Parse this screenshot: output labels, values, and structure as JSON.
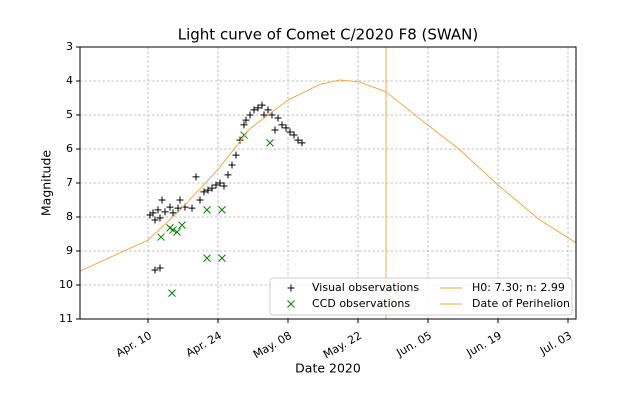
{
  "chart_data": {
    "type": "scatter",
    "title": "Light curve of Comet C/2020 F8 (SWAN)",
    "x_label": "Date 2020",
    "y_label": "Magnitude",
    "xlim": [
      87.4,
      186.6
    ],
    "xticks": [
      {
        "value": 101,
        "label": "Apr. 10"
      },
      {
        "value": 115,
        "label": "Apr. 24"
      },
      {
        "value": 129,
        "label": "May. 08"
      },
      {
        "value": 143,
        "label": "May. 22"
      },
      {
        "value": 157,
        "label": "Jun. 05"
      },
      {
        "value": 171,
        "label": "Jun. 19"
      },
      {
        "value": 185,
        "label": "Jul. 03"
      }
    ],
    "ylim": [
      11,
      3
    ],
    "yticks": [
      3,
      4,
      5,
      6,
      7,
      8,
      9,
      10,
      11
    ],
    "grid": true,
    "legend": "lower right",
    "series": [
      {
        "name": "Visual observations",
        "type": "scatter",
        "marker": "plus",
        "color": "#000000",
        "x": [
          101.4,
          102.0,
          102.4,
          103.0,
          103.4,
          103.8,
          104.4,
          105.4,
          106.0,
          107.0,
          107.4,
          108.4,
          109.8,
          110.6,
          111.4,
          112.2,
          113.0,
          113.8,
          114.6,
          115.4,
          116.2,
          117.0,
          117.8,
          118.6,
          119.4,
          120.2,
          120.6,
          121.4,
          122.2,
          123.0,
          123.8,
          124.2,
          125.0,
          125.8,
          126.4,
          127.0,
          127.8,
          128.6,
          129.4,
          130.2,
          131.0,
          131.8,
          102.4,
          103.4
        ],
        "values": [
          7.94,
          7.88,
          8.09,
          7.79,
          8.03,
          7.5,
          7.85,
          7.71,
          7.88,
          7.74,
          7.5,
          7.71,
          7.74,
          6.82,
          7.5,
          7.26,
          7.21,
          7.15,
          7.06,
          7.0,
          7.09,
          6.76,
          6.47,
          6.18,
          5.74,
          5.29,
          5.15,
          5.0,
          4.85,
          4.79,
          4.71,
          5.0,
          4.85,
          5.0,
          5.44,
          5.09,
          5.29,
          5.38,
          5.5,
          5.59,
          5.74,
          5.82,
          9.56,
          9.5
        ]
      },
      {
        "name": "CCD observations",
        "type": "scatter",
        "marker": "cross",
        "color": "#008000",
        "x": [
          103.6,
          105.4,
          106.0,
          106.8,
          107.8,
          112.8,
          115.8,
          112.8,
          115.8,
          105.8,
          120.2,
          125.4
        ],
        "values": [
          8.59,
          8.32,
          8.38,
          8.44,
          8.24,
          7.79,
          7.79,
          9.21,
          9.21,
          10.24,
          5.59,
          5.82
        ]
      },
      {
        "name": "H0: 7.30; n: 2.99",
        "type": "line",
        "color": "#f5a033",
        "x": [
          87.4,
          101,
          107.4,
          115,
          121.4,
          129,
          135.4,
          139.4,
          143.4,
          148.6,
          157,
          163.4,
          171,
          179.4,
          186.6
        ],
        "values": [
          9.59,
          8.68,
          7.8,
          6.6,
          5.4,
          4.56,
          4.1,
          3.97,
          4.03,
          4.32,
          5.3,
          6.03,
          7.06,
          8.09,
          8.76
        ]
      }
    ],
    "perihelion": {
      "name": "Date of Perihelion",
      "x": 148.6,
      "color": "#f5a033"
    }
  }
}
